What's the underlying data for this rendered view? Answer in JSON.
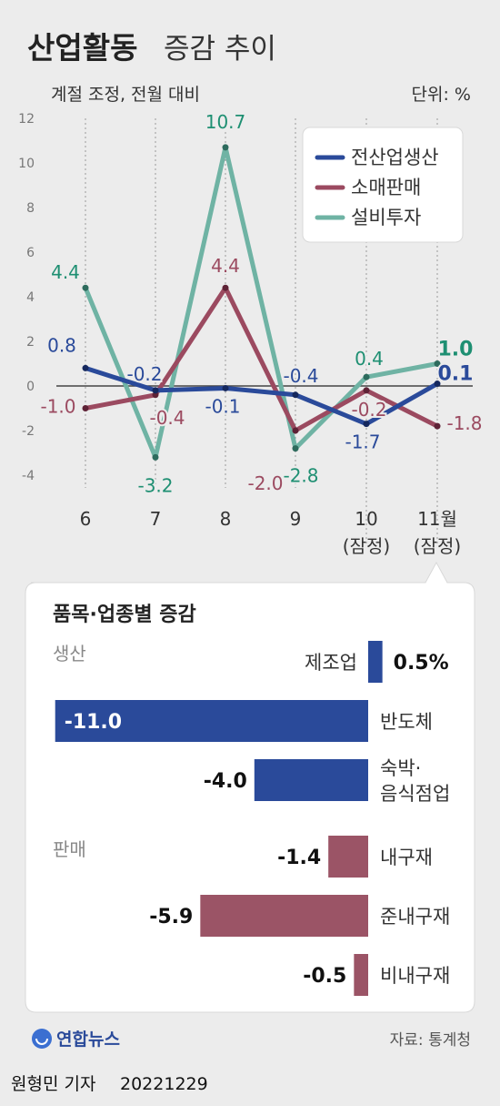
{
  "title": {
    "bold": "산업활동",
    "rest": "증감 추이"
  },
  "subtitle": "계절 조정, 전월 대비",
  "unit": "단위: %",
  "chart_data": [
    {
      "type": "line",
      "x": [
        "6",
        "7",
        "8",
        "9",
        "10",
        "11월"
      ],
      "x_sublabels": [
        "",
        "",
        "",
        "",
        "(잠정)",
        "(잠정)"
      ],
      "yticks": [
        "12",
        "10",
        "8",
        "6",
        "4",
        "2",
        "0",
        "-2",
        "-4"
      ],
      "ylim": [
        -4,
        12
      ],
      "grid": false,
      "legend_position": "top-right",
      "series": [
        {
          "name": "전산업생산",
          "color": "#2a4a9a",
          "label_color": "#2a4a9a",
          "values": [
            0.8,
            -0.2,
            -0.1,
            -0.4,
            -1.7,
            0.1
          ],
          "labels": [
            "0.8",
            "-0.2",
            "-0.1",
            "-0.4",
            "-1.7",
            "0.1"
          ]
        },
        {
          "name": "소매판매",
          "color": "#9b4a60",
          "label_color": "#9b4a60",
          "values": [
            -1.0,
            -0.4,
            4.4,
            -2.0,
            -0.2,
            -1.8
          ],
          "labels": [
            "-1.0",
            "-0.4",
            "4.4",
            "-2.0",
            "-0.2",
            "-1.8"
          ]
        },
        {
          "name": "설비투자",
          "color": "#6fb3a4",
          "label_color": "#1e8f72",
          "values": [
            4.4,
            -3.2,
            10.7,
            -2.8,
            0.4,
            1.0
          ],
          "labels": [
            "4.4",
            "-3.2",
            "10.7",
            "-2.8",
            "0.4",
            "1.0"
          ]
        }
      ]
    },
    {
      "type": "bar",
      "title": "품목·업종별 증감",
      "groups": [
        {
          "name": "생산",
          "color": "#2a4a9a",
          "items": [
            {
              "label": [
                "제조업"
              ],
              "value": 0.5,
              "display": "0.5%"
            },
            {
              "label": [
                "반도체"
              ],
              "value": -11.0,
              "display": "-11.0"
            },
            {
              "label": [
                "숙박·",
                "음식점업"
              ],
              "value": -4.0,
              "display": "-4.0"
            }
          ]
        },
        {
          "name": "판매",
          "color": "#9b5466",
          "items": [
            {
              "label": [
                "내구재"
              ],
              "value": -1.4,
              "display": "-1.4"
            },
            {
              "label": [
                "준내구재"
              ],
              "value": -5.9,
              "display": "-5.9"
            },
            {
              "label": [
                "비내구재"
              ],
              "value": -0.5,
              "display": "-0.5"
            }
          ]
        }
      ]
    }
  ],
  "source": "자료: 통계청",
  "agency": "연합뉴스",
  "credit": {
    "author": "원형민 기자",
    "date": "20221229"
  }
}
